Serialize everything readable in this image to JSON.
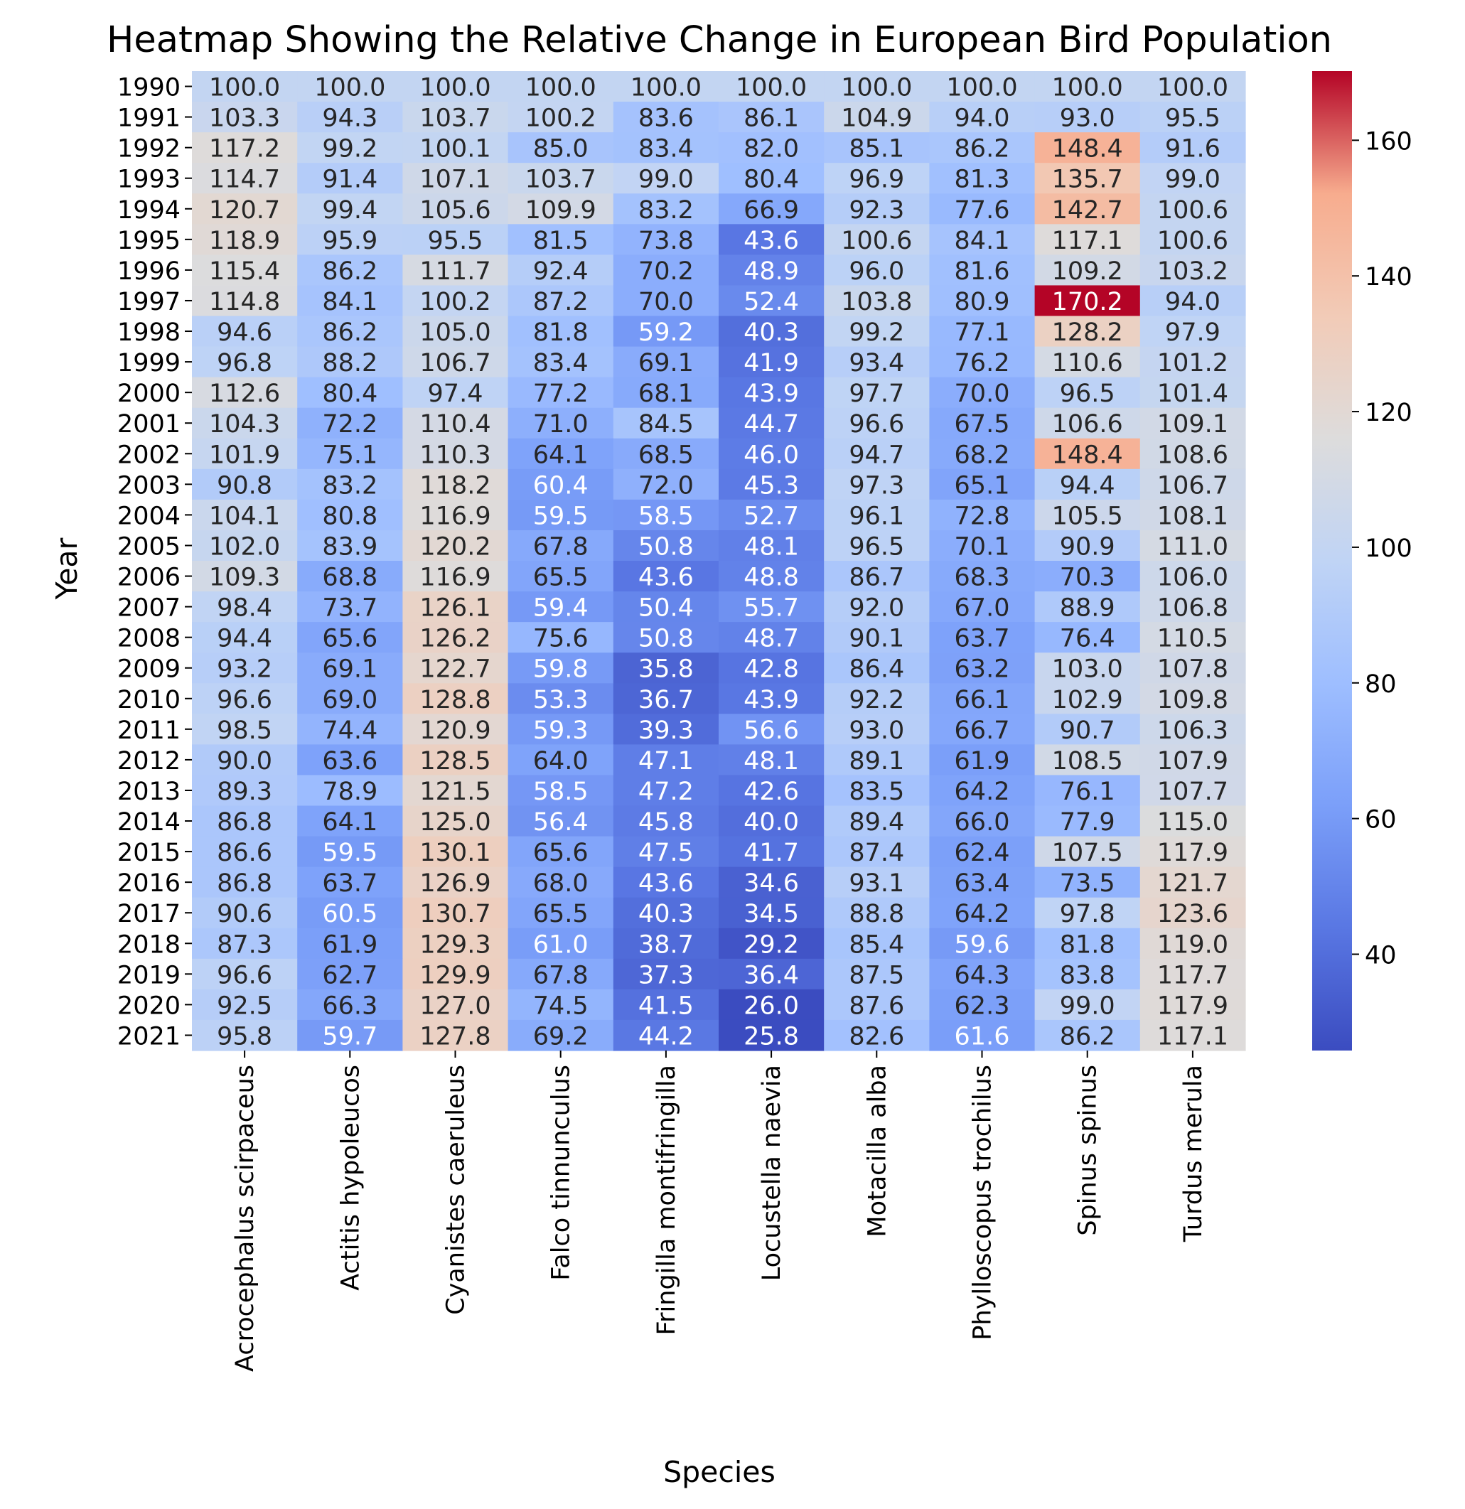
{
  "chart_data": {
    "type": "heatmap",
    "title": "Heatmap Showing the Relative Change in European Bird Population",
    "xlabel": "Species",
    "ylabel": "Year",
    "colormap": "coolwarm",
    "vmin": 25.8,
    "vmax": 170.2,
    "colorbar_ticks": [
      40,
      60,
      80,
      100,
      120,
      140,
      160
    ],
    "rows": [
      "1990",
      "1991",
      "1992",
      "1993",
      "1994",
      "1995",
      "1996",
      "1997",
      "1998",
      "1999",
      "2000",
      "2001",
      "2002",
      "2003",
      "2004",
      "2005",
      "2006",
      "2007",
      "2008",
      "2009",
      "2010",
      "2011",
      "2012",
      "2013",
      "2014",
      "2015",
      "2016",
      "2017",
      "2018",
      "2019",
      "2020",
      "2021"
    ],
    "columns": [
      "Acrocephalus scirpaceus",
      "Actitis hypoleucos",
      "Cyanistes caeruleus",
      "Falco tinnunculus",
      "Fringilla montifringilla",
      "Locustella naevia",
      "Motacilla alba",
      "Phylloscopus trochilus",
      "Spinus spinus",
      "Turdus merula"
    ],
    "values": [
      [
        100.0,
        100.0,
        100.0,
        100.0,
        100.0,
        100.0,
        100.0,
        100.0,
        100.0,
        100.0
      ],
      [
        103.3,
        94.3,
        103.7,
        100.2,
        83.6,
        86.1,
        104.9,
        94.0,
        93.0,
        95.5
      ],
      [
        117.2,
        99.2,
        100.1,
        85.0,
        83.4,
        82.0,
        85.1,
        86.2,
        148.4,
        91.6
      ],
      [
        114.7,
        91.4,
        107.1,
        103.7,
        99.0,
        80.4,
        96.9,
        81.3,
        135.7,
        99.0
      ],
      [
        120.7,
        99.4,
        105.6,
        109.9,
        83.2,
        66.9,
        92.3,
        77.6,
        142.7,
        100.6
      ],
      [
        118.9,
        95.9,
        95.5,
        81.5,
        73.8,
        43.6,
        100.6,
        84.1,
        117.1,
        100.6
      ],
      [
        115.4,
        86.2,
        111.7,
        92.4,
        70.2,
        48.9,
        96.0,
        81.6,
        109.2,
        103.2
      ],
      [
        114.8,
        84.1,
        100.2,
        87.2,
        70.0,
        52.4,
        103.8,
        80.9,
        170.2,
        94.0
      ],
      [
        94.6,
        86.2,
        105.0,
        81.8,
        59.2,
        40.3,
        99.2,
        77.1,
        128.2,
        97.9
      ],
      [
        96.8,
        88.2,
        106.7,
        83.4,
        69.1,
        41.9,
        93.4,
        76.2,
        110.6,
        101.2
      ],
      [
        112.6,
        80.4,
        97.4,
        77.2,
        68.1,
        43.9,
        97.7,
        70.0,
        96.5,
        101.4
      ],
      [
        104.3,
        72.2,
        110.4,
        71.0,
        84.5,
        44.7,
        96.6,
        67.5,
        106.6,
        109.1
      ],
      [
        101.9,
        75.1,
        110.3,
        64.1,
        68.5,
        46.0,
        94.7,
        68.2,
        148.4,
        108.6
      ],
      [
        90.8,
        83.2,
        118.2,
        60.4,
        72.0,
        45.3,
        97.3,
        65.1,
        94.4,
        106.7
      ],
      [
        104.1,
        80.8,
        116.9,
        59.5,
        58.5,
        52.7,
        96.1,
        72.8,
        105.5,
        108.1
      ],
      [
        102.0,
        83.9,
        120.2,
        67.8,
        50.8,
        48.1,
        96.5,
        70.1,
        90.9,
        111.0
      ],
      [
        109.3,
        68.8,
        116.9,
        65.5,
        43.6,
        48.8,
        86.7,
        68.3,
        70.3,
        106.0
      ],
      [
        98.4,
        73.7,
        126.1,
        59.4,
        50.4,
        55.7,
        92.0,
        67.0,
        88.9,
        106.8
      ],
      [
        94.4,
        65.6,
        126.2,
        75.6,
        50.8,
        48.7,
        90.1,
        63.7,
        76.4,
        110.5
      ],
      [
        93.2,
        69.1,
        122.7,
        59.8,
        35.8,
        42.8,
        86.4,
        63.2,
        103.0,
        107.8
      ],
      [
        96.6,
        69.0,
        128.8,
        53.3,
        36.7,
        43.9,
        92.2,
        66.1,
        102.9,
        109.8
      ],
      [
        98.5,
        74.4,
        120.9,
        59.3,
        39.3,
        56.6,
        93.0,
        66.7,
        90.7,
        106.3
      ],
      [
        90.0,
        63.6,
        128.5,
        64.0,
        47.1,
        48.1,
        89.1,
        61.9,
        108.5,
        107.9
      ],
      [
        89.3,
        78.9,
        121.5,
        58.5,
        47.2,
        42.6,
        83.5,
        64.2,
        76.1,
        107.7
      ],
      [
        86.8,
        64.1,
        125.0,
        56.4,
        45.8,
        40.0,
        89.4,
        66.0,
        77.9,
        115.0
      ],
      [
        86.6,
        59.5,
        130.1,
        65.6,
        47.5,
        41.7,
        87.4,
        62.4,
        107.5,
        117.9
      ],
      [
        86.8,
        63.7,
        126.9,
        68.0,
        43.6,
        34.6,
        93.1,
        63.4,
        73.5,
        121.7
      ],
      [
        90.6,
        60.5,
        130.7,
        65.5,
        40.3,
        34.5,
        88.8,
        64.2,
        97.8,
        123.6
      ],
      [
        87.3,
        61.9,
        129.3,
        61.0,
        38.7,
        29.2,
        85.4,
        59.6,
        81.8,
        119.0
      ],
      [
        96.6,
        62.7,
        129.9,
        67.8,
        37.3,
        36.4,
        87.5,
        64.3,
        83.8,
        117.7
      ],
      [
        92.5,
        66.3,
        127.0,
        74.5,
        41.5,
        26.0,
        87.6,
        62.3,
        99.0,
        117.9
      ],
      [
        95.8,
        59.7,
        127.8,
        69.2,
        44.2,
        25.8,
        82.6,
        61.6,
        86.2,
        117.1
      ]
    ]
  }
}
